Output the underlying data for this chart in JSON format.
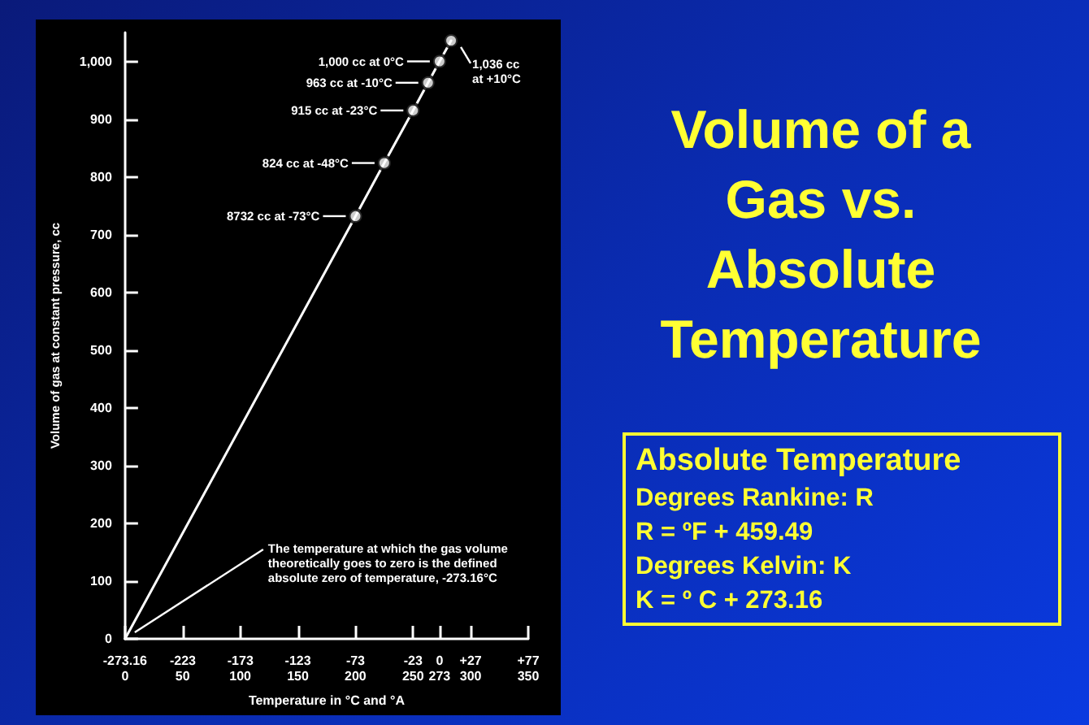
{
  "chart_data": {
    "type": "line",
    "title": "Volume of a Gas vs. Absolute Temperature",
    "xlabel": "Temperature in °C and °A",
    "ylabel": "Volume of gas at constant pressure, cc",
    "series": [
      {
        "color": "#ffffff",
        "marker": "none",
        "x": [
          -273.16,
          -73,
          -48,
          -23,
          -10,
          0,
          10
        ],
        "values": [
          0,
          732,
          824,
          915,
          963,
          1000,
          1036
        ]
      },
      {
        "type": "scatter",
        "color": "#ffffff",
        "marker": "circle",
        "x": [
          -73,
          -48,
          -23,
          -10,
          0,
          10
        ],
        "values": [
          732,
          824,
          915,
          963,
          1000,
          1036
        ]
      }
    ],
    "xlim": [
      -273.16,
      77
    ],
    "ylim": [
      0,
      1050
    ],
    "xticks": [
      -273.16,
      -223,
      -173,
      -123,
      -73,
      -23,
      0,
      {
        "value": 27,
        "label": "+27"
      },
      {
        "value": 77,
        "label": "+77"
      }
    ],
    "x2lim": [
      0,
      350
    ],
    "x2ticks": [
      0,
      50,
      100,
      150,
      200,
      250,
      273,
      300,
      350
    ],
    "yticks": [
      0,
      100,
      200,
      300,
      400,
      500,
      600,
      700,
      800,
      900,
      {
        "value": 1000,
        "label": "1,000"
      }
    ],
    "grid": false,
    "annotations": [
      {
        "text": "8732 cc at -73°C",
        "x": -73,
        "y": 732
      },
      {
        "text": "824 cc at -48°C",
        "x": -48,
        "y": 824
      },
      {
        "text": "915 cc at -23°C",
        "x": -23,
        "y": 915
      },
      {
        "text": "963 cc at -10°C",
        "x": -10,
        "y": 963
      },
      {
        "text": "1,000 cc at 0°C",
        "x": 0,
        "y": 1000
      },
      {
        "text": "1,036 cc\nat +10°C",
        "x": 10,
        "y": 1036
      },
      {
        "text": "The temperature at which the gas volume\ntheoretically goes to zero is the defined\nabsolute zero of temperature, -273.16°C",
        "x": -273.16,
        "y": 0
      },
      "Absolute Temperature",
      "Degrees Rankine: R",
      "R =  ºF + 459.49",
      "Degrees Kelvin: K",
      "K =  º C + 273.16"
    ]
  }
}
